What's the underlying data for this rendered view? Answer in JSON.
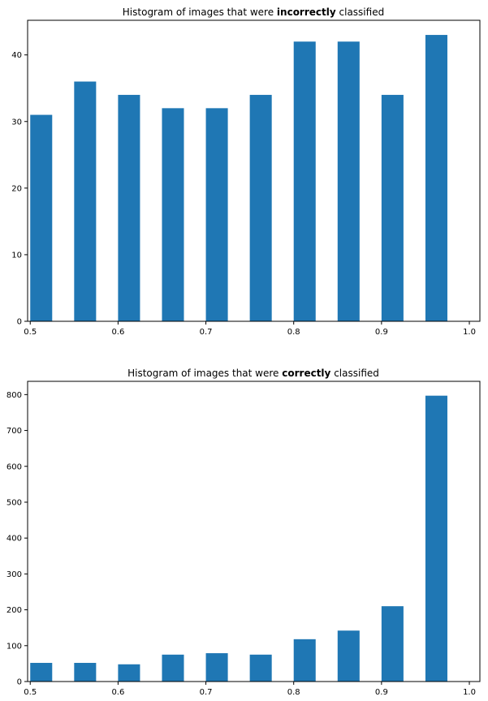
{
  "bar_color": "#1f77b4",
  "chart_data": [
    {
      "type": "bar",
      "title": {
        "prefix": "Histogram of images that were ",
        "emphasis": "incorrectly",
        "suffix": " classified"
      },
      "bin_edges": [
        0.5,
        0.55,
        0.6,
        0.65,
        0.7,
        0.75,
        0.8,
        0.85,
        0.9,
        0.95,
        1.0
      ],
      "bar_width": 0.025,
      "values": [
        31,
        36,
        34,
        32,
        32,
        34,
        42,
        42,
        34,
        43
      ],
      "xlim": [
        0.497,
        1.012
      ],
      "ylim": [
        0,
        45.2
      ],
      "xticks": [
        0.5,
        0.6,
        0.7,
        0.8,
        0.9,
        1.0
      ],
      "xtick_labels": [
        "0.5",
        "0.6",
        "0.7",
        "0.8",
        "0.9",
        "1.0"
      ],
      "yticks": [
        0,
        10,
        20,
        30,
        40
      ],
      "ytick_labels": [
        "0",
        "10",
        "20",
        "30",
        "40"
      ],
      "grid": false,
      "xlabel": "",
      "ylabel": ""
    },
    {
      "type": "bar",
      "title": {
        "prefix": "Histogram of images that were ",
        "emphasis": "correctly",
        "suffix": " classified"
      },
      "bin_edges": [
        0.5,
        0.55,
        0.6,
        0.65,
        0.7,
        0.75,
        0.8,
        0.85,
        0.9,
        0.95,
        1.0
      ],
      "bar_width": 0.025,
      "values": [
        52,
        52,
        48,
        75,
        79,
        75,
        118,
        142,
        210,
        797
      ],
      "xlim": [
        0.497,
        1.012
      ],
      "ylim": [
        0,
        837
      ],
      "xticks": [
        0.5,
        0.6,
        0.7,
        0.8,
        0.9,
        1.0
      ],
      "xtick_labels": [
        "0.5",
        "0.6",
        "0.7",
        "0.8",
        "0.9",
        "1.0"
      ],
      "yticks": [
        0,
        100,
        200,
        300,
        400,
        500,
        600,
        700,
        800
      ],
      "ytick_labels": [
        "0",
        "100",
        "200",
        "300",
        "400",
        "500",
        "600",
        "700",
        "800"
      ],
      "grid": false,
      "xlabel": "",
      "ylabel": ""
    }
  ]
}
